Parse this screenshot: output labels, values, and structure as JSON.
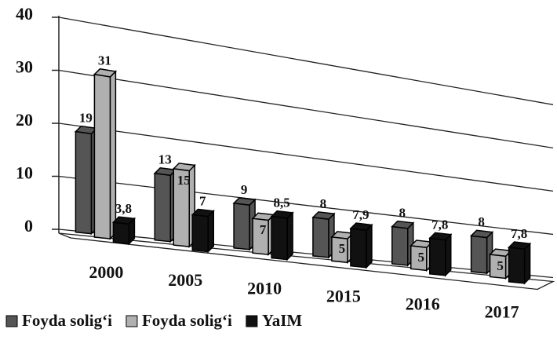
{
  "chart_data": {
    "type": "bar3d",
    "categories": [
      "2000",
      "2005",
      "2010",
      "2015",
      "2016",
      "2017"
    ],
    "series": [
      {
        "name": "Foyda solig‘i",
        "color": "#555555",
        "values": [
          19,
          13,
          9,
          8,
          8,
          8
        ]
      },
      {
        "name": "Foyda solig‘i",
        "color": "#b0b0b0",
        "values": [
          31,
          15,
          7,
          5,
          5,
          5
        ]
      },
      {
        "name": "YaIM",
        "color": "#111111",
        "values": [
          3.8,
          7,
          8.5,
          7.9,
          7.8,
          7.8
        ],
        "value_labels": [
          "3,8",
          "7",
          "8,5",
          "7,9",
          "7,8",
          "7,8"
        ]
      }
    ],
    "ylim": [
      0,
      40
    ],
    "yticks": [
      0,
      10,
      20,
      30,
      40
    ],
    "grid": true,
    "legend": "bottom"
  }
}
